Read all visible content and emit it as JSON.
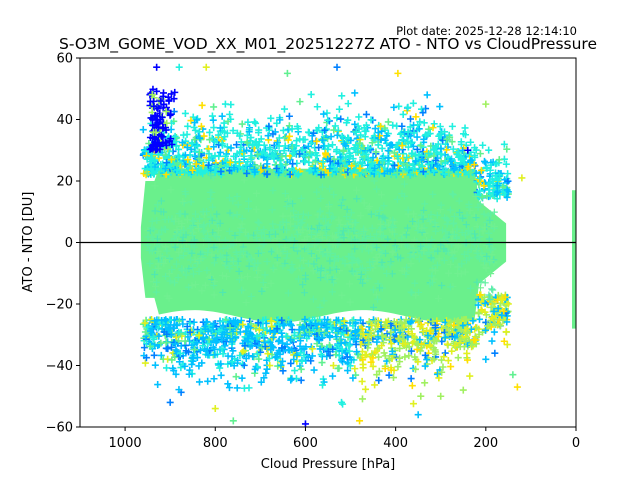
{
  "chart_data": {
    "type": "scatter",
    "title": "S-O3M_GOME_VOD_XX_M01_20251227Z ATO - NTO vs CloudPressure",
    "subtitle": "Plot date: 2025-12-28 12:14:10",
    "xlabel": "Cloud Pressure [hPa]",
    "ylabel": "ATO - NTO [DU]",
    "xlim": [
      1100,
      0
    ],
    "ylim": [
      -60,
      60
    ],
    "x_ticks": [
      1000,
      800,
      600,
      400,
      200,
      0
    ],
    "x_tick_labels": [
      "1000",
      "800",
      "600",
      "400",
      "200",
      "0"
    ],
    "y_ticks": [
      60,
      40,
      20,
      0,
      -20,
      -40,
      -60
    ],
    "y_tick_labels": [
      "60",
      "40",
      "20",
      "0",
      "−20",
      "−40",
      "−60"
    ],
    "reference_line": {
      "y": 0,
      "color": "#000000"
    },
    "marker": "plus",
    "grid": false,
    "colormap": [
      "#0000ff",
      "#0080ff",
      "#00c0ff",
      "#20f0e0",
      "#60f090",
      "#a0f060",
      "#e0f020",
      "#ffe000"
    ],
    "dense_core_color": "#6af08c",
    "point_clusters": [
      {
        "x_range": [
          960,
          160
        ],
        "y_range": [
          -25,
          25
        ],
        "density": "very high",
        "dominant_color": "#6af08c"
      },
      {
        "x_range": [
          950,
          400
        ],
        "y_range": [
          20,
          35
        ],
        "density": "medium",
        "dominant_color": "#20e0f0"
      },
      {
        "x_range": [
          950,
          160
        ],
        "y_range": [
          -45,
          -20
        ],
        "density": "medium",
        "dominant_color": "#20c0f0"
      },
      {
        "x_range": [
          950,
          880
        ],
        "y_range": [
          25,
          58
        ],
        "density": "medium",
        "dominant_color": "#0020ff"
      },
      {
        "x_range": [
          450,
          150
        ],
        "y_range": [
          -45,
          -15
        ],
        "density": "medium",
        "dominant_color": "#d0f030"
      },
      {
        "x_range": [
          1
        ],
        "y_range": [
          -30,
          18
        ],
        "density": "high",
        "dominant_color": "#6af08c"
      }
    ]
  }
}
